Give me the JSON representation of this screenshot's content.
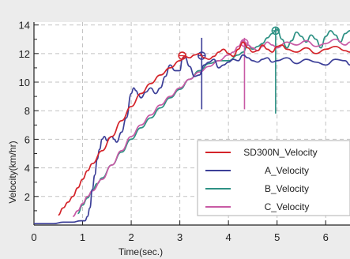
{
  "chart_data": {
    "type": "line",
    "title": "",
    "xlabel": "Time(sec.)",
    "ylabel": "Velocity(km/hr)",
    "xlim": [
      0,
      6.5
    ],
    "ylim": [
      0,
      14.2
    ],
    "x_ticks": [
      "0",
      "1",
      "2",
      "3",
      "4",
      "5",
      "6"
    ],
    "y_ticks": [
      "2",
      "4",
      "6",
      "8",
      "10",
      "12",
      "14"
    ],
    "grid": true,
    "legend_position": "bottom-right",
    "series": [
      {
        "name": "SD300N_Velocity",
        "color": "#d4242a",
        "x": [
          0.5,
          0.6,
          0.7,
          0.8,
          0.9,
          1.0,
          1.1,
          1.2,
          1.4,
          1.6,
          1.8,
          2.0,
          2.2,
          2.4,
          2.6,
          2.8,
          3.0,
          3.1,
          3.2,
          3.3,
          3.4,
          3.5,
          3.6,
          3.7,
          3.8,
          3.9,
          4.0,
          4.1,
          4.2,
          4.3,
          4.4,
          4.5,
          4.6,
          4.7,
          4.8,
          4.9,
          5.0,
          5.1,
          5.2,
          5.4,
          5.6,
          5.8,
          6.0,
          6.2,
          6.4,
          6.5
        ],
        "y": [
          0.7,
          1.2,
          1.6,
          2.0,
          2.6,
          3.2,
          3.8,
          4.3,
          5.2,
          6.2,
          7.3,
          8.3,
          9.2,
          9.9,
          10.5,
          11.0,
          11.5,
          11.8,
          11.7,
          11.9,
          12.0,
          11.7,
          11.6,
          11.8,
          12.1,
          12.3,
          12.0,
          11.8,
          12.3,
          12.8,
          12.4,
          12.1,
          12.2,
          12.6,
          12.3,
          12.1,
          12.5,
          12.6,
          12.3,
          12.1,
          12.4,
          12.0,
          12.3,
          12.5,
          12.2,
          12.1
        ],
        "markers": [
          {
            "x": 3.05,
            "y": 11.85
          }
        ]
      },
      {
        "name": "A_Velocity",
        "color": "#3c3f98",
        "x": [
          0.0,
          0.4,
          0.6,
          0.8,
          0.95,
          1.05,
          1.1,
          1.15,
          1.2,
          1.25,
          1.3,
          1.35,
          1.4,
          1.45,
          1.5,
          1.55,
          1.6,
          1.65,
          1.7,
          1.8,
          1.9,
          2.0,
          2.05,
          2.1,
          2.15,
          2.2,
          2.3,
          2.4,
          2.5,
          2.6,
          2.7,
          2.8,
          2.9,
          3.0,
          3.05,
          3.1,
          3.2,
          3.3,
          3.4,
          3.5,
          3.6,
          3.7,
          3.8,
          3.9,
          4.0,
          4.1,
          4.2,
          4.3,
          4.4,
          4.5,
          4.6,
          4.7,
          4.8,
          4.9,
          5.0,
          5.2,
          5.4,
          5.6,
          5.8,
          6.0,
          6.2,
          6.4,
          6.5
        ],
        "y": [
          0.1,
          0.1,
          0.2,
          0.2,
          0.3,
          0.3,
          0.6,
          1.2,
          2.5,
          3.5,
          4.6,
          5.3,
          6.0,
          6.2,
          5.9,
          6.1,
          6.2,
          6.0,
          5.8,
          6.5,
          7.5,
          9.2,
          9.6,
          9.4,
          9.1,
          8.9,
          9.3,
          9.6,
          9.2,
          9.6,
          10.4,
          11.2,
          10.8,
          10.8,
          11.6,
          11.8,
          11.1,
          10.4,
          10.5,
          11.2,
          11.4,
          11.6,
          11.0,
          11.2,
          11.4,
          11.6,
          11.5,
          11.9,
          11.7,
          11.5,
          11.4,
          11.6,
          11.7,
          11.4,
          11.5,
          11.7,
          11.3,
          11.6,
          11.4,
          11.2,
          11.6,
          11.5,
          11.2
        ],
        "markers": [
          {
            "x": 3.45,
            "y": 11.85
          }
        ],
        "bars": [
          {
            "x": 3.45,
            "y_low": 8.1,
            "y_high": 13.1
          }
        ]
      },
      {
        "name": "B_Velocity",
        "color": "#2e9184",
        "x": [
          0.9,
          1.0,
          1.1,
          1.2,
          1.3,
          1.4,
          1.6,
          1.8,
          2.0,
          2.2,
          2.4,
          2.6,
          2.8,
          3.0,
          3.2,
          3.4,
          3.6,
          3.8,
          4.0,
          4.2,
          4.3,
          4.4,
          4.5,
          4.6,
          4.7,
          4.8,
          4.9,
          5.0,
          5.1,
          5.2,
          5.3,
          5.4,
          5.5,
          5.6,
          5.7,
          5.8,
          5.9,
          6.0,
          6.1,
          6.2,
          6.3,
          6.4,
          6.5
        ],
        "y": [
          0.8,
          1.4,
          1.9,
          2.4,
          2.9,
          3.3,
          4.2,
          5.1,
          6.0,
          6.8,
          7.5,
          8.2,
          8.9,
          9.5,
          10.2,
          10.8,
          11.3,
          11.5,
          11.5,
          11.9,
          12.1,
          12.6,
          12.3,
          12.5,
          12.7,
          13.1,
          13.4,
          13.7,
          13.0,
          12.4,
          12.9,
          13.5,
          13.2,
          12.8,
          13.3,
          13.0,
          12.4,
          13.2,
          13.6,
          13.3,
          12.8,
          13.4,
          13.6
        ],
        "markers": [
          {
            "x": 4.97,
            "y": 13.6
          }
        ],
        "bars": [
          {
            "x": 4.97,
            "y_low": 7.8,
            "y_high": 13.8
          }
        ]
      },
      {
        "name": "C_Velocity",
        "color": "#c85aa5",
        "x": [
          0.8,
          0.9,
          1.0,
          1.1,
          1.2,
          1.4,
          1.6,
          1.8,
          2.0,
          2.2,
          2.4,
          2.6,
          2.8,
          3.0,
          3.2,
          3.4,
          3.6,
          3.8,
          4.0,
          4.1,
          4.2,
          4.3,
          4.4,
          4.5,
          4.6,
          4.7,
          4.8,
          4.9,
          5.0,
          5.2,
          5.4,
          5.6,
          5.8,
          6.0,
          6.2,
          6.4,
          6.5
        ],
        "y": [
          0.6,
          1.0,
          1.5,
          2.0,
          2.4,
          3.2,
          4.2,
          5.2,
          6.2,
          7.0,
          7.7,
          8.4,
          9.0,
          9.6,
          10.2,
          10.7,
          11.1,
          11.5,
          11.9,
          12.1,
          12.5,
          12.9,
          12.6,
          12.4,
          12.2,
          12.5,
          12.8,
          12.6,
          12.4,
          12.8,
          12.6,
          12.9,
          12.5,
          12.7,
          13.0,
          12.6,
          12.8
        ],
        "markers": [
          {
            "x": 4.33,
            "y": 12.75
          }
        ],
        "bars": [
          {
            "x": 4.33,
            "y_low": 8.1,
            "y_high": 13.1
          }
        ]
      }
    ]
  }
}
